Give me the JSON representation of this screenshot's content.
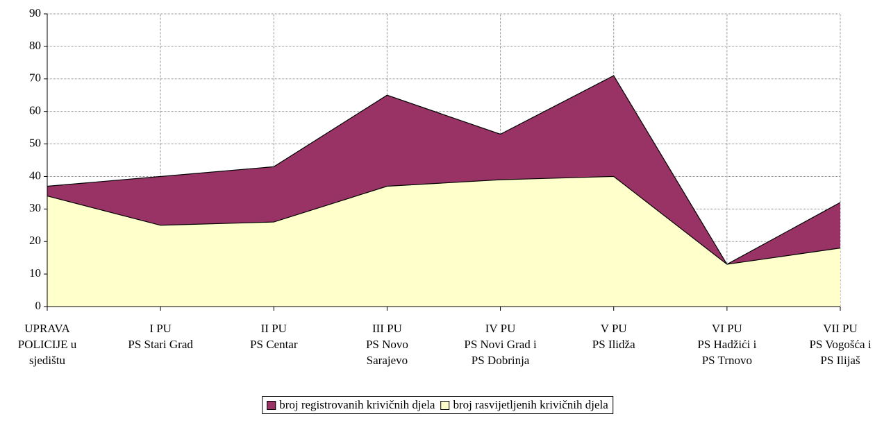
{
  "chart_data": {
    "type": "area",
    "categories": [
      "UPRAVA\nPOLICIJE u\nsjedištu",
      "I PU\nPS Stari Grad",
      "II PU\nPS Centar",
      "III PU\nPS Novo\nSarajevo",
      "IV PU\nPS Novi Grad i\nPS Dobrinja",
      "V PU\nPS Ilidža",
      "VI PU\nPS Hadžići i\nPS Trnovo",
      "VII PU\nPS Vogošća i\nPS Ilijaš"
    ],
    "series": [
      {
        "name": "broj registrovanih krivičnih djela",
        "color": "#993366",
        "values": [
          37,
          40,
          43,
          65,
          53,
          71,
          13,
          32
        ]
      },
      {
        "name": "broj rasvijetljenih krivičnih djela",
        "color": "#ffffcc",
        "values": [
          34,
          25,
          26,
          37,
          39,
          40,
          13,
          18
        ]
      }
    ],
    "ylim": [
      0,
      90
    ],
    "yticks": [
      0,
      10,
      20,
      30,
      40,
      50,
      60,
      70,
      80,
      90
    ],
    "grid": true,
    "legend": "bottom"
  }
}
